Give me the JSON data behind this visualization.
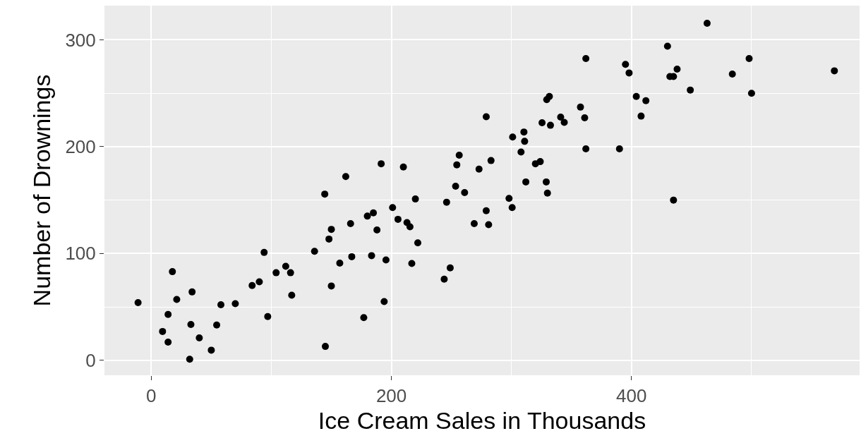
{
  "chart_data": {
    "type": "scatter",
    "xlabel": "Ice Cream Sales in Thousands",
    "ylabel": "Number of Drownings",
    "x": [
      -11,
      17.6,
      21.2,
      34,
      14,
      9.4,
      14,
      33,
      40,
      32,
      50,
      54.5,
      58,
      70,
      84,
      90,
      94,
      97,
      104,
      112,
      116,
      117,
      136,
      145,
      148,
      150,
      166,
      157,
      167,
      150,
      279,
      279,
      269,
      281,
      283,
      273,
      256.5,
      254.5,
      253.5,
      261,
      246,
      249,
      244,
      220,
      210,
      191.5,
      162,
      144.5,
      201,
      205.5,
      213,
      215.5,
      222,
      217,
      195.5,
      183.5,
      180,
      185,
      188,
      194,
      177,
      463,
      430,
      362,
      395,
      398,
      438,
      432,
      435,
      498,
      484,
      569,
      449,
      500,
      404,
      412,
      408,
      331.6,
      329.4,
      357.5,
      361,
      341,
      344,
      325.5,
      332.5,
      310.4,
      301,
      311,
      308,
      362,
      390,
      320,
      324,
      312,
      329,
      330,
      298,
      300.6,
      435
    ],
    "values": [
      54,
      83,
      57,
      64,
      43,
      27,
      17,
      33.5,
      21,
      1,
      9.5,
      33,
      52,
      53,
      70,
      73.5,
      101,
      41,
      82,
      88,
      82,
      61,
      102,
      13,
      113.5,
      122.6,
      128,
      91,
      97,
      69.6,
      228,
      140,
      128,
      127,
      187,
      179,
      192,
      183,
      163,
      157,
      148,
      86.5,
      76,
      151,
      181,
      184,
      172,
      155.6,
      143,
      132,
      129,
      125,
      110,
      90.7,
      94,
      98,
      135,
      138,
      122,
      55,
      40,
      315.5,
      294,
      282.5,
      277,
      269,
      272.6,
      265.6,
      265.6,
      282.5,
      268,
      271,
      253,
      250,
      247,
      243,
      228.6,
      247,
      244,
      237,
      227,
      227.7,
      222.7,
      222.4,
      220,
      213.7,
      209,
      205,
      195,
      198,
      198,
      184,
      186,
      167,
      167,
      156.5,
      151.6,
      143,
      150
    ],
    "color": "#000000",
    "marker": "circle",
    "xlim": [
      -39,
      590
    ],
    "ylim": [
      -14,
      332
    ],
    "xticks": [
      0,
      200,
      400
    ],
    "yticks": [
      0,
      100,
      200,
      300
    ],
    "grid": true
  }
}
